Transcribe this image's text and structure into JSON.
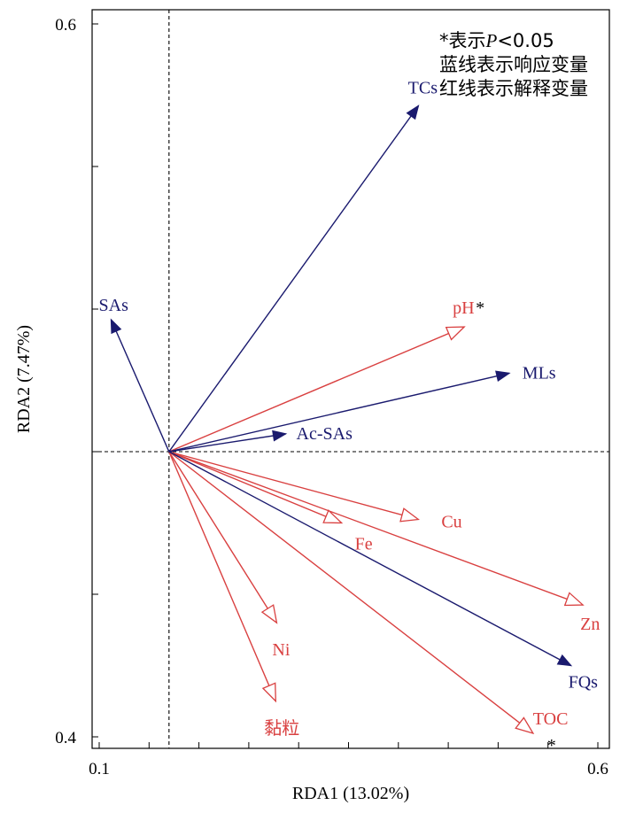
{
  "chart_data": {
    "type": "biplot",
    "xlabel": "RDA1 (13.02%)",
    "ylabel": "RDA2 (7.47%)",
    "xlim": [
      0.1,
      0.6
    ],
    "ylim": [
      0.4,
      0.6
    ],
    "x_tick_labels": [
      "0.1",
      "0.6"
    ],
    "y_tick_labels": [
      "0.6",
      "0.4"
    ],
    "origin": [
      0.17,
      0.48
    ],
    "response_color": "#1a1a6e",
    "explanatory_color": "#d94040",
    "response_vectors": [
      {
        "name": "TCs",
        "x": 0.42,
        "y": 0.577
      },
      {
        "name": "SAs",
        "x": 0.112,
        "y": 0.517
      },
      {
        "name": "MLs",
        "x": 0.511,
        "y": 0.502
      },
      {
        "name": "Ac-SAs",
        "x": 0.287,
        "y": 0.485
      },
      {
        "name": "FQs",
        "x": 0.573,
        "y": 0.42
      }
    ],
    "explanatory_vectors": [
      {
        "name": "pH",
        "x": 0.466,
        "y": 0.515,
        "star": "*"
      },
      {
        "name": "Cu",
        "x": 0.42,
        "y": 0.461
      },
      {
        "name": "Fe",
        "x": 0.343,
        "y": 0.46
      },
      {
        "name": "Zn",
        "x": 0.585,
        "y": 0.437
      },
      {
        "name": "Ni",
        "x": 0.278,
        "y": 0.432
      },
      {
        "name": "黏粒",
        "x": 0.277,
        "y": 0.41
      },
      {
        "name": "TOC",
        "x": 0.535,
        "y": 0.401,
        "star": "*"
      }
    ]
  },
  "legend": {
    "line1_star": "*表示",
    "line1_p": "P",
    "line1_rest": "<0.05",
    "line2": "蓝线表示响应变量",
    "line3": "红线表示解释变量"
  }
}
